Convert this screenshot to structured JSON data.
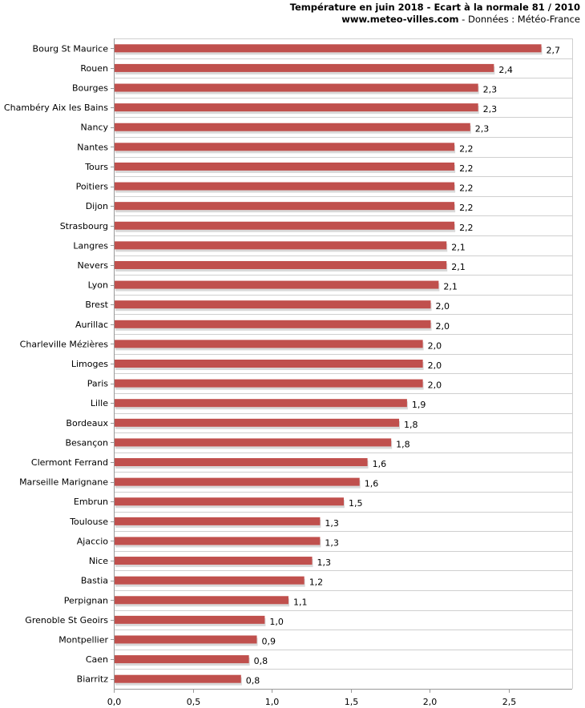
{
  "header": {
    "title": "Température en juin 2018 - Ecart à la normale 81 / 2010",
    "site": "www.meteo-villes.com",
    "source": "- Données : Météo-France"
  },
  "chart_data": {
    "type": "bar",
    "orientation": "horizontal",
    "title": "Température en juin 2018 - Ecart à la normale 81 / 2010",
    "xlabel": "",
    "ylabel": "",
    "xlim": [
      0,
      2.9
    ],
    "xticks": [
      "0,0",
      "0,5",
      "1,0",
      "1,5",
      "2,0",
      "2,5"
    ],
    "bar_color": "#c0504d",
    "categories": [
      "Bourg St Maurice",
      "Rouen",
      "Bourges",
      "Chambéry Aix les Bains",
      "Nancy",
      "Nantes",
      "Tours",
      "Poitiers",
      "Dijon",
      "Strasbourg",
      "Langres",
      "Nevers",
      "Lyon",
      "Brest",
      "Aurillac",
      "Charleville Mézières",
      "Limoges",
      "Paris",
      "Lille",
      "Bordeaux",
      "Besançon",
      "Clermont Ferrand",
      "Marseille Marignane",
      "Embrun",
      "Toulouse",
      "Ajaccio",
      "Nice",
      "Bastia",
      "Perpignan",
      "Grenoble St Geoirs",
      "Montpellier",
      "Caen",
      "Biarritz"
    ],
    "values": [
      2.7,
      2.4,
      2.3,
      2.3,
      2.25,
      2.15,
      2.15,
      2.15,
      2.15,
      2.15,
      2.1,
      2.1,
      2.05,
      2.0,
      2.0,
      1.95,
      1.95,
      1.95,
      1.85,
      1.8,
      1.75,
      1.6,
      1.55,
      1.45,
      1.3,
      1.3,
      1.25,
      1.2,
      1.1,
      0.95,
      0.9,
      0.85,
      0.8
    ],
    "labels": [
      "2,7",
      "2,4",
      "2,3",
      "2,3",
      "2,3",
      "2,2",
      "2,2",
      "2,2",
      "2,2",
      "2,2",
      "2,1",
      "2,1",
      "2,1",
      "2,0",
      "2,0",
      "2,0",
      "2,0",
      "2,0",
      "1,9",
      "1,8",
      "1,8",
      "1,6",
      "1,6",
      "1,5",
      "1,3",
      "1,3",
      "1,3",
      "1,2",
      "1,1",
      "1,0",
      "0,9",
      "0,8",
      "0,8"
    ]
  }
}
